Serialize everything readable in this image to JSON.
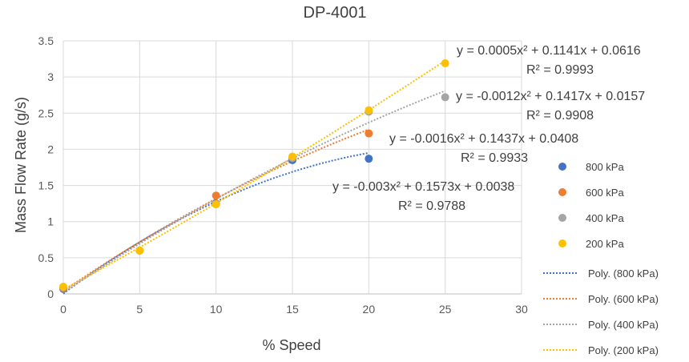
{
  "chart_data": {
    "type": "scatter",
    "title": "DP-4001",
    "xlabel": "% Speed",
    "ylabel": "Mass Flow Rate (g/s)",
    "xlim": [
      0,
      30
    ],
    "ylim": [
      0,
      3.5
    ],
    "x_ticks": [
      "0",
      "5",
      "10",
      "15",
      "20",
      "25",
      "30"
    ],
    "y_ticks": [
      "0",
      "0.5",
      "1",
      "1.5",
      "2",
      "2.5",
      "3",
      "3.5"
    ],
    "grid": true,
    "legend_position": "right",
    "series": [
      {
        "name": "800 kPa",
        "color": "#4472C4",
        "x": [
          0,
          5,
          10,
          15,
          20
        ],
        "y": [
          0.07,
          0.6,
          1.25,
          1.85,
          1.87
        ],
        "trend_name": "Poly. (800 kPa)",
        "trend_coeffs": [
          -0.003,
          0.1573,
          0.0038
        ],
        "trend_x": [
          0,
          20
        ],
        "equation": "y = -0.003x² + 0.1573x + 0.0038",
        "r2": "R² = 0.9788"
      },
      {
        "name": "600 kPa",
        "color": "#ED7D31",
        "x": [
          0,
          5,
          10,
          15,
          20
        ],
        "y": [
          0.08,
          0.6,
          1.36,
          1.88,
          2.22
        ],
        "trend_name": "Poly. (600 kPa)",
        "trend_coeffs": [
          -0.0016,
          0.1437,
          0.0408
        ],
        "trend_x": [
          0,
          20
        ],
        "equation": "y = -0.0016x² + 0.1437x + 0.0408",
        "r2": "R² = 0.9933"
      },
      {
        "name": "400 kPa",
        "color": "#A5A5A5",
        "x": [
          0,
          5,
          10,
          15,
          20,
          25
        ],
        "y": [
          0.09,
          0.6,
          1.24,
          1.88,
          2.52,
          2.72
        ],
        "trend_name": "Poly. (400 kPa)",
        "trend_coeffs": [
          -0.0012,
          0.1417,
          0.0157
        ],
        "trend_x": [
          0,
          25
        ],
        "equation": "y = -0.0012x² + 0.1417x + 0.0157",
        "r2": "R² = 0.9908"
      },
      {
        "name": "200  kPa",
        "color": "#FFC000",
        "x": [
          0,
          5,
          10,
          15,
          20,
          25
        ],
        "y": [
          0.1,
          0.6,
          1.24,
          1.9,
          2.54,
          3.19
        ],
        "trend_name": "Poly. (200  kPa)",
        "trend_coeffs": [
          0.0005,
          0.1141,
          0.0616
        ],
        "trend_x": [
          0,
          25
        ],
        "equation": "y = 0.0005x² + 0.1141x + 0.0616",
        "r2": "R² = 0.9993"
      }
    ]
  }
}
